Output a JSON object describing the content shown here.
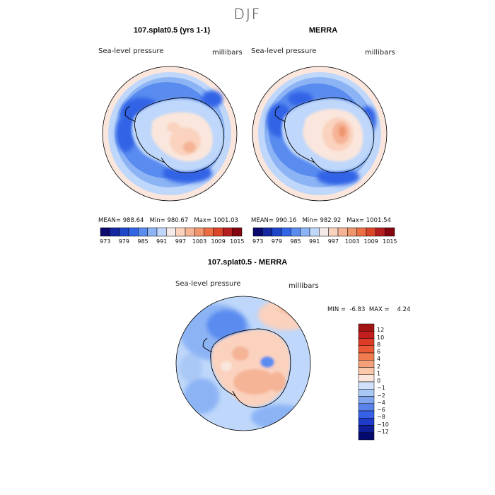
{
  "title": "DJF",
  "panels": [
    {
      "title": "107.splat0.5 (yrs 1-1)",
      "variable": "Sea-level pressure",
      "units": "millibars",
      "stats": {
        "mean_label": "MEAN=",
        "mean": "988.64",
        "min_label": "Min=",
        "min": "980.67",
        "max_label": "Max=",
        "max": "1001.03"
      }
    },
    {
      "title": "MERRA",
      "variable": "Sea-level pressure",
      "units": "millibars",
      "stats": {
        "mean_label": "MEAN=",
        "mean": "990.16",
        "min_label": "Min=",
        "min": "982.92",
        "max_label": "Max=",
        "max": "1001.54"
      }
    },
    {
      "title": "107.splat0.5 - MERRA",
      "variable": "Sea-level pressure",
      "units": "millibars",
      "stats": {
        "min_label": "MIN =",
        "min": "-6.83",
        "max_label": "MAX =",
        "max": "4.24"
      }
    }
  ],
  "colorbar_abs": {
    "labels": [
      "973",
      "979",
      "985",
      "991",
      "997",
      "1003",
      "1009",
      "1015"
    ],
    "colors": [
      "#0a0a6e",
      "#1428a0",
      "#1e46c8",
      "#3264e6",
      "#5a8cf0",
      "#8cb4f5",
      "#bed7fa",
      "#f5eaea",
      "#fad2be",
      "#f5b496",
      "#f0966e",
      "#eb6e46",
      "#dc4628",
      "#b41e1e",
      "#82050f"
    ]
  },
  "colorbar_diff": {
    "labels": [
      "12",
      "10",
      "8",
      "6",
      "4",
      "2",
      "1",
      "0",
      "−1",
      "−2",
      "−4",
      "−6",
      "−8",
      "−10",
      "−12"
    ],
    "colors": [
      "#a01414",
      "#c31e1e",
      "#dc3c28",
      "#eb5a37",
      "#f07c50",
      "#f5a078",
      "#fac8aa",
      "#fae6dc",
      "#d2e1fa",
      "#aac8f5",
      "#82a5f0",
      "#5a82eb",
      "#3760e6",
      "#1e3cc8",
      "#0f1e96",
      "#050a6e"
    ]
  },
  "chart_data": [
    {
      "type": "heatmap",
      "title": "107.splat0.5 (yrs 1-1)",
      "field": "Sea-level pressure",
      "units": "millibars",
      "projection": "south polar stereographic",
      "mean": 988.64,
      "min": 980.67,
      "max": 1001.03,
      "contour_levels": [
        973,
        976,
        979,
        982,
        985,
        988,
        991,
        994,
        997,
        1000,
        1003,
        1006,
        1009,
        1012,
        1015
      ]
    },
    {
      "type": "heatmap",
      "title": "MERRA",
      "field": "Sea-level pressure",
      "units": "millibars",
      "projection": "south polar stereographic",
      "mean": 990.16,
      "min": 982.92,
      "max": 1001.54,
      "contour_levels": [
        973,
        976,
        979,
        982,
        985,
        988,
        991,
        994,
        997,
        1000,
        1003,
        1006,
        1009,
        1012,
        1015
      ]
    },
    {
      "type": "heatmap",
      "title": "107.splat0.5 - MERRA",
      "field": "Sea-level pressure",
      "units": "millibars",
      "projection": "south polar stereographic",
      "min": -6.83,
      "max": 4.24,
      "contour_levels": [
        -12,
        -10,
        -8,
        -6,
        -4,
        -2,
        -1,
        0,
        1,
        2,
        4,
        6,
        8,
        10,
        12
      ]
    }
  ]
}
